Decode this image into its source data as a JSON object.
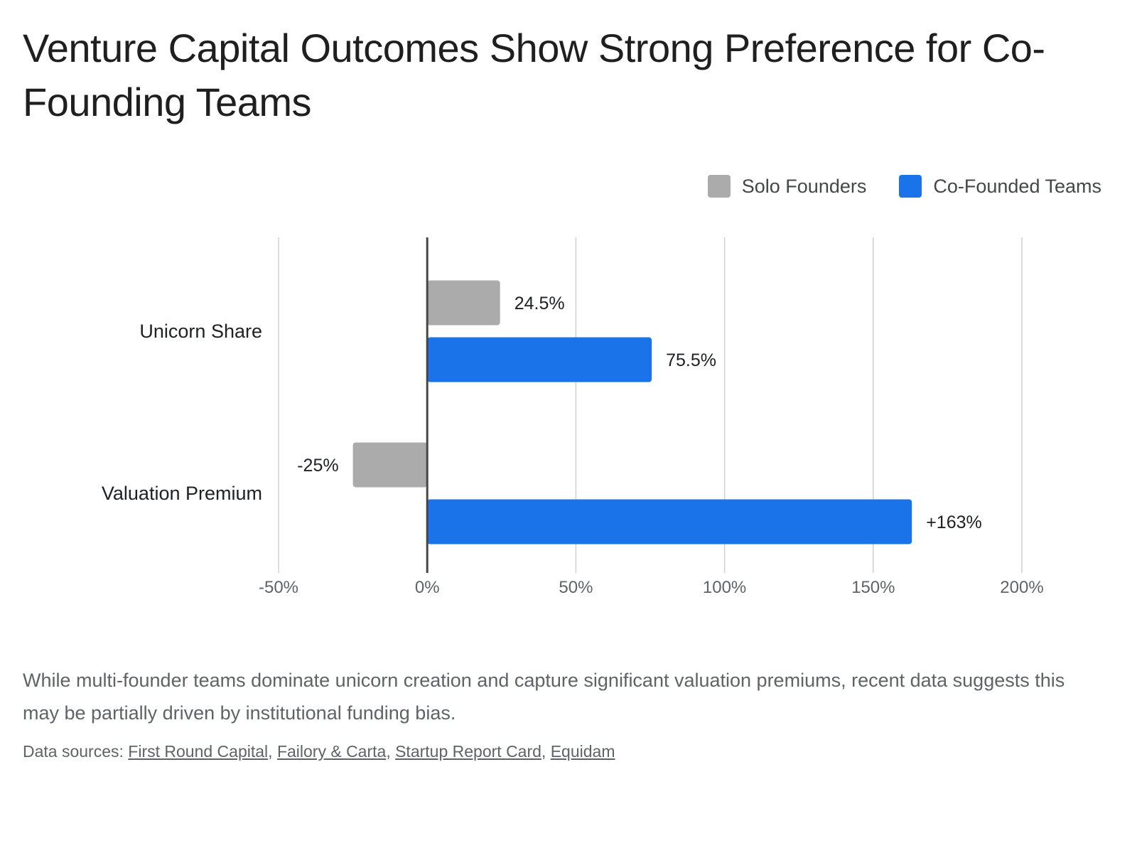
{
  "title": "Venture Capital Outcomes Show Strong Preference for Co-Founding Teams",
  "caption": "While multi-founder teams dominate unicorn creation and capture significant valuation premiums, recent data suggests this may be partially driven by institutional funding bias.",
  "sources": {
    "prefix": "Data sources: ",
    "links": [
      "First Round Capital",
      "Failory & Carta",
      "Startup Report Card",
      "Equidam"
    ],
    "separator": ", "
  },
  "colors": {
    "solo": "#ababab",
    "cofounded": "#1a73e8",
    "grid": "#d0d0d0",
    "axis": "#5f6368"
  },
  "chart_data": {
    "type": "bar",
    "orientation": "horizontal",
    "categories": [
      "Unicorn Share",
      "Valuation Premium"
    ],
    "series": [
      {
        "name": "Solo Founders",
        "values": [
          24.5,
          -25
        ],
        "labels": [
          "24.5%",
          "-25%"
        ],
        "color": "#ababab"
      },
      {
        "name": "Co-Founded Teams",
        "values": [
          75.5,
          163
        ],
        "labels": [
          "75.5%",
          "+163%"
        ],
        "color": "#1a73e8"
      }
    ],
    "xlim": [
      -50,
      200
    ],
    "xticks": [
      -50,
      0,
      50,
      100,
      150,
      200
    ],
    "xtick_labels": [
      "-50%",
      "0%",
      "50%",
      "100%",
      "150%",
      "200%"
    ],
    "grid": true,
    "legend_position": "top-right"
  }
}
